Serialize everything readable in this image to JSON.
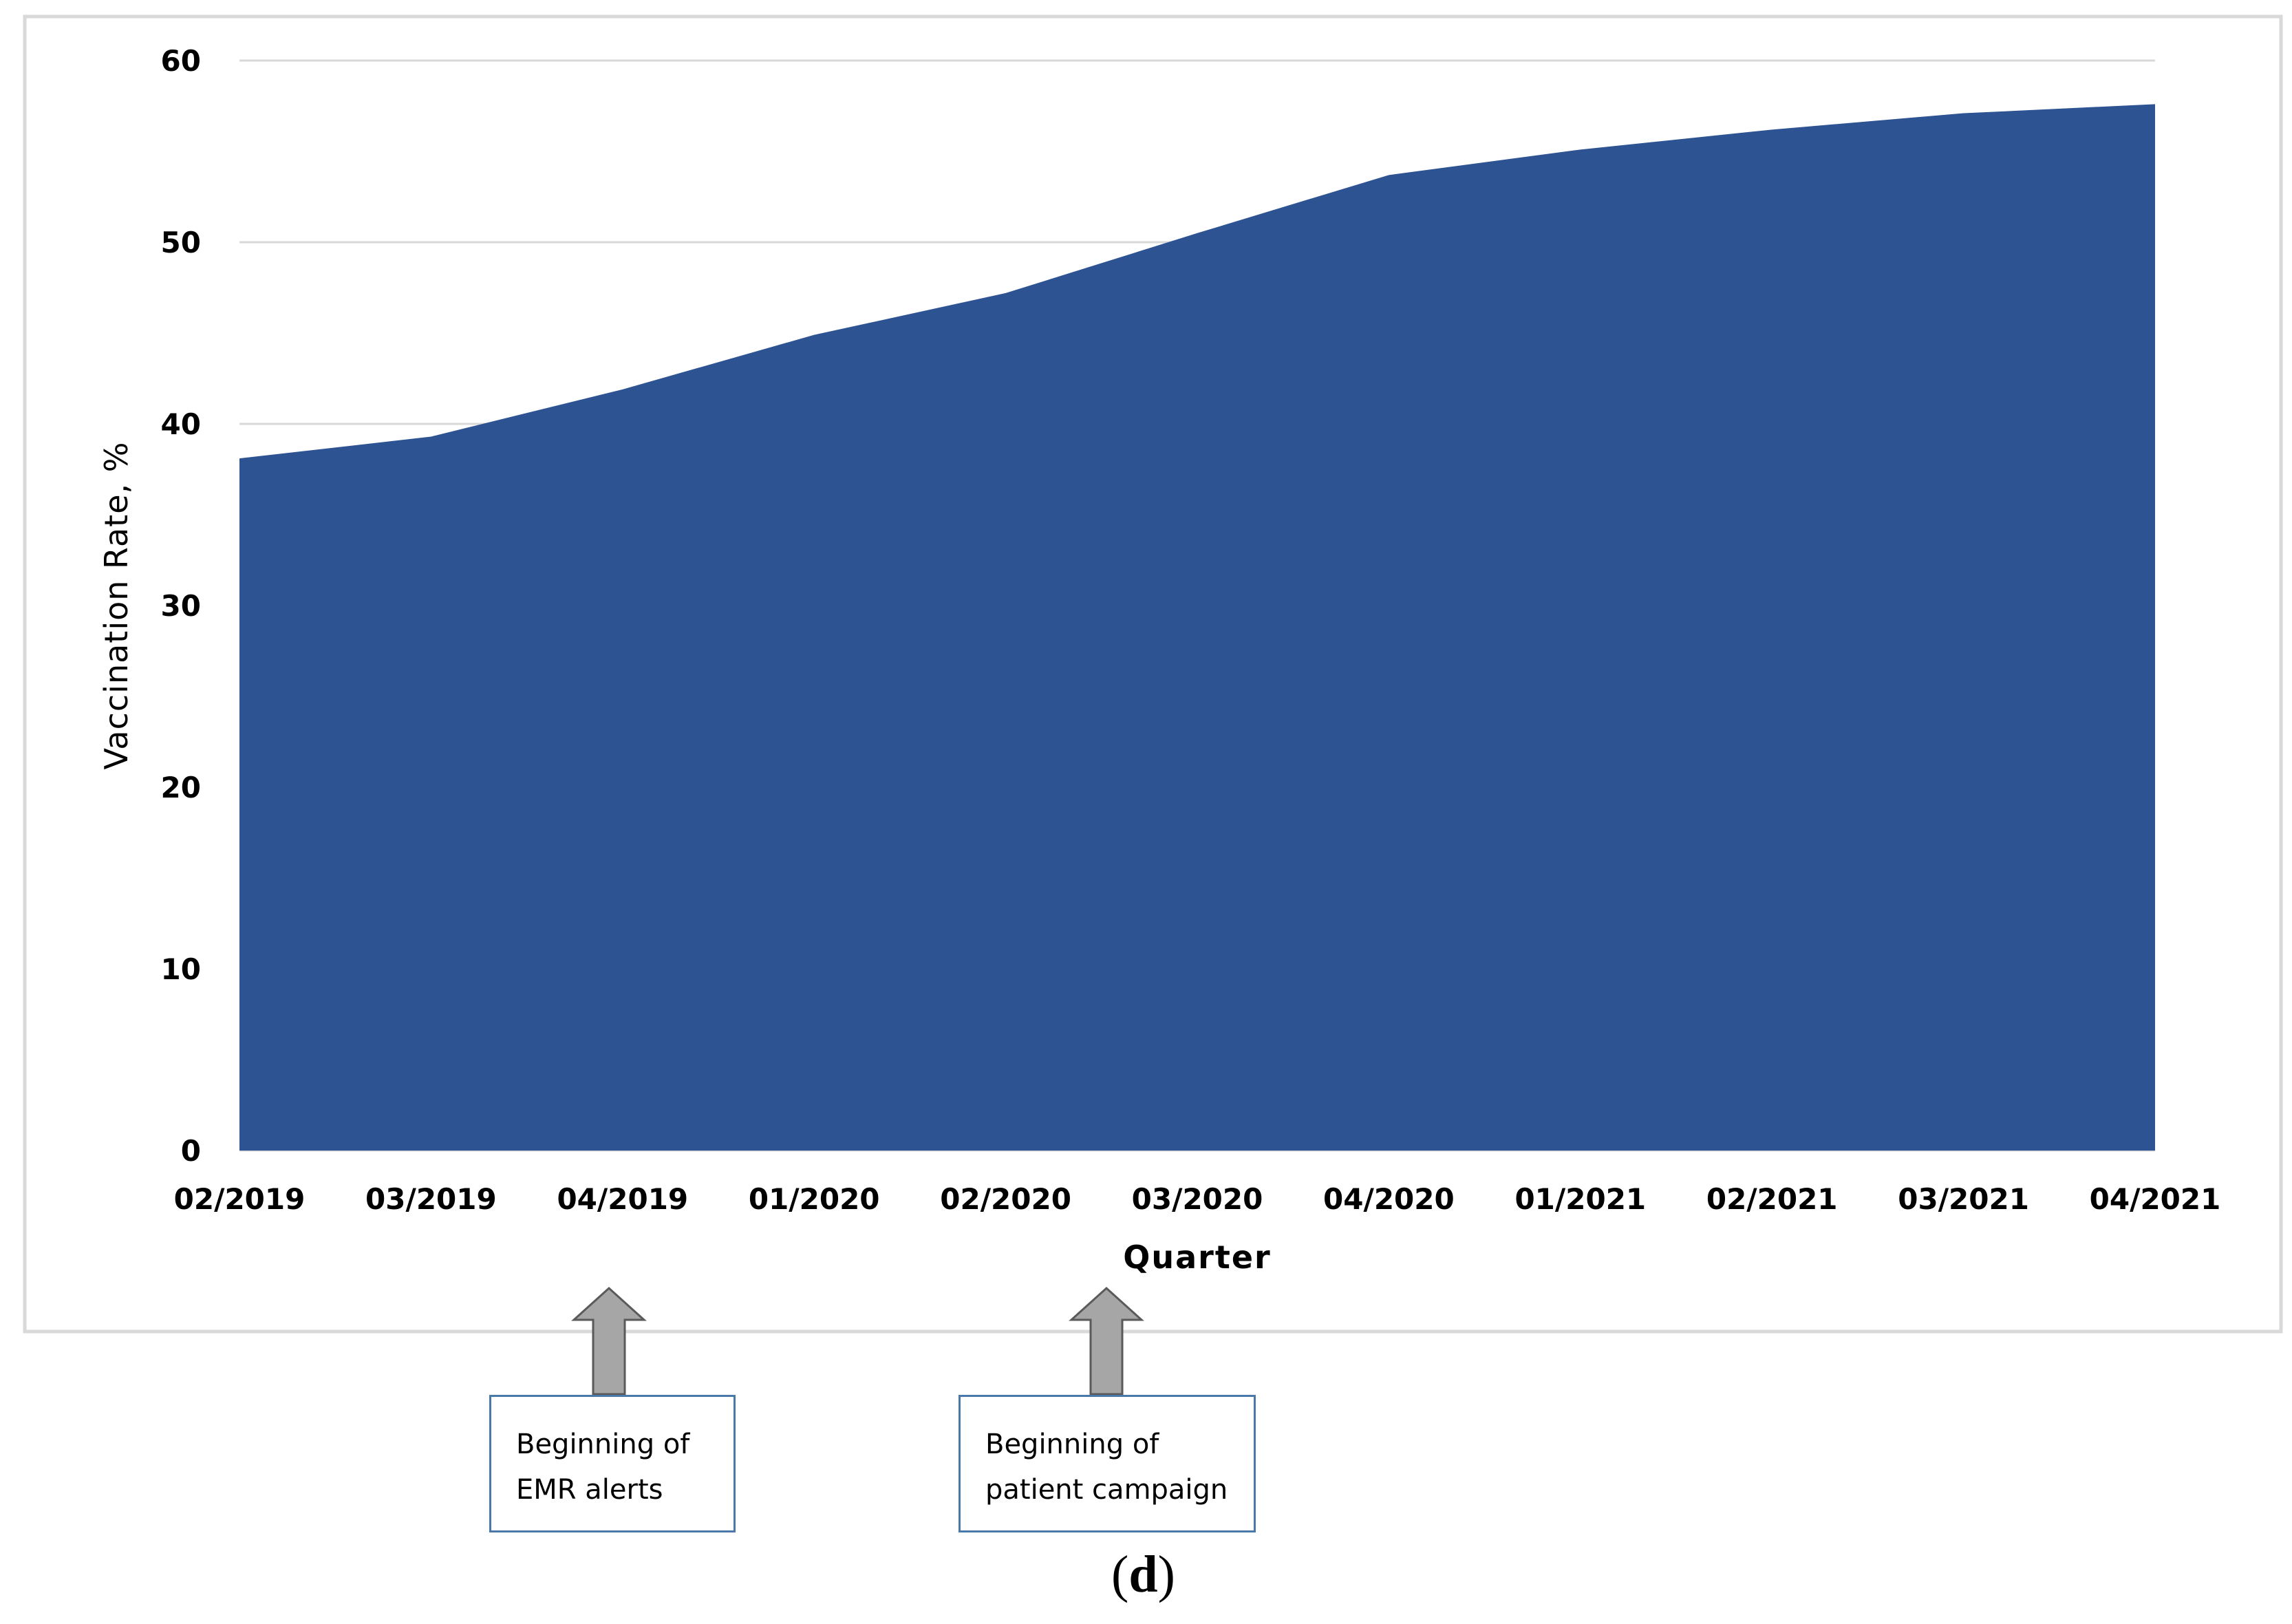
{
  "chart_data": {
    "type": "area",
    "categories": [
      "02/2019",
      "03/2019",
      "04/2019",
      "01/2020",
      "02/2020",
      "03/2020",
      "04/2020",
      "01/2021",
      "02/2021",
      "03/2021",
      "04/2021"
    ],
    "series": [
      {
        "values": [
          38.1,
          39.3,
          41.9,
          44.9,
          47.2,
          50.5,
          53.7,
          55.1,
          56.2,
          57.1,
          57.6
        ]
      }
    ],
    "xlabel": "Quarter",
    "ylabel": "Vaccination  Rate, %",
    "ylim": [
      0,
      60
    ],
    "yticks": [
      0,
      10,
      20,
      30,
      40,
      50,
      60
    ],
    "grid": true,
    "fill_color": "#2e5392",
    "annotations": [
      {
        "at_category": "04/2019",
        "lines": [
          "Beginning of",
          "EMR alerts"
        ]
      },
      {
        "at_category": "02/2020–03/2020",
        "lines": [
          "Beginning of",
          "patient campaign"
        ]
      }
    ]
  },
  "panel_label": {
    "open": "(",
    "letter": "d",
    "close": ")"
  },
  "colors": {
    "area": "#2e5392",
    "grid": "#d9d9d9",
    "arrow": "#a6a6a6",
    "box_border": "#4a78a8",
    "frame": "#d9d9d9"
  }
}
